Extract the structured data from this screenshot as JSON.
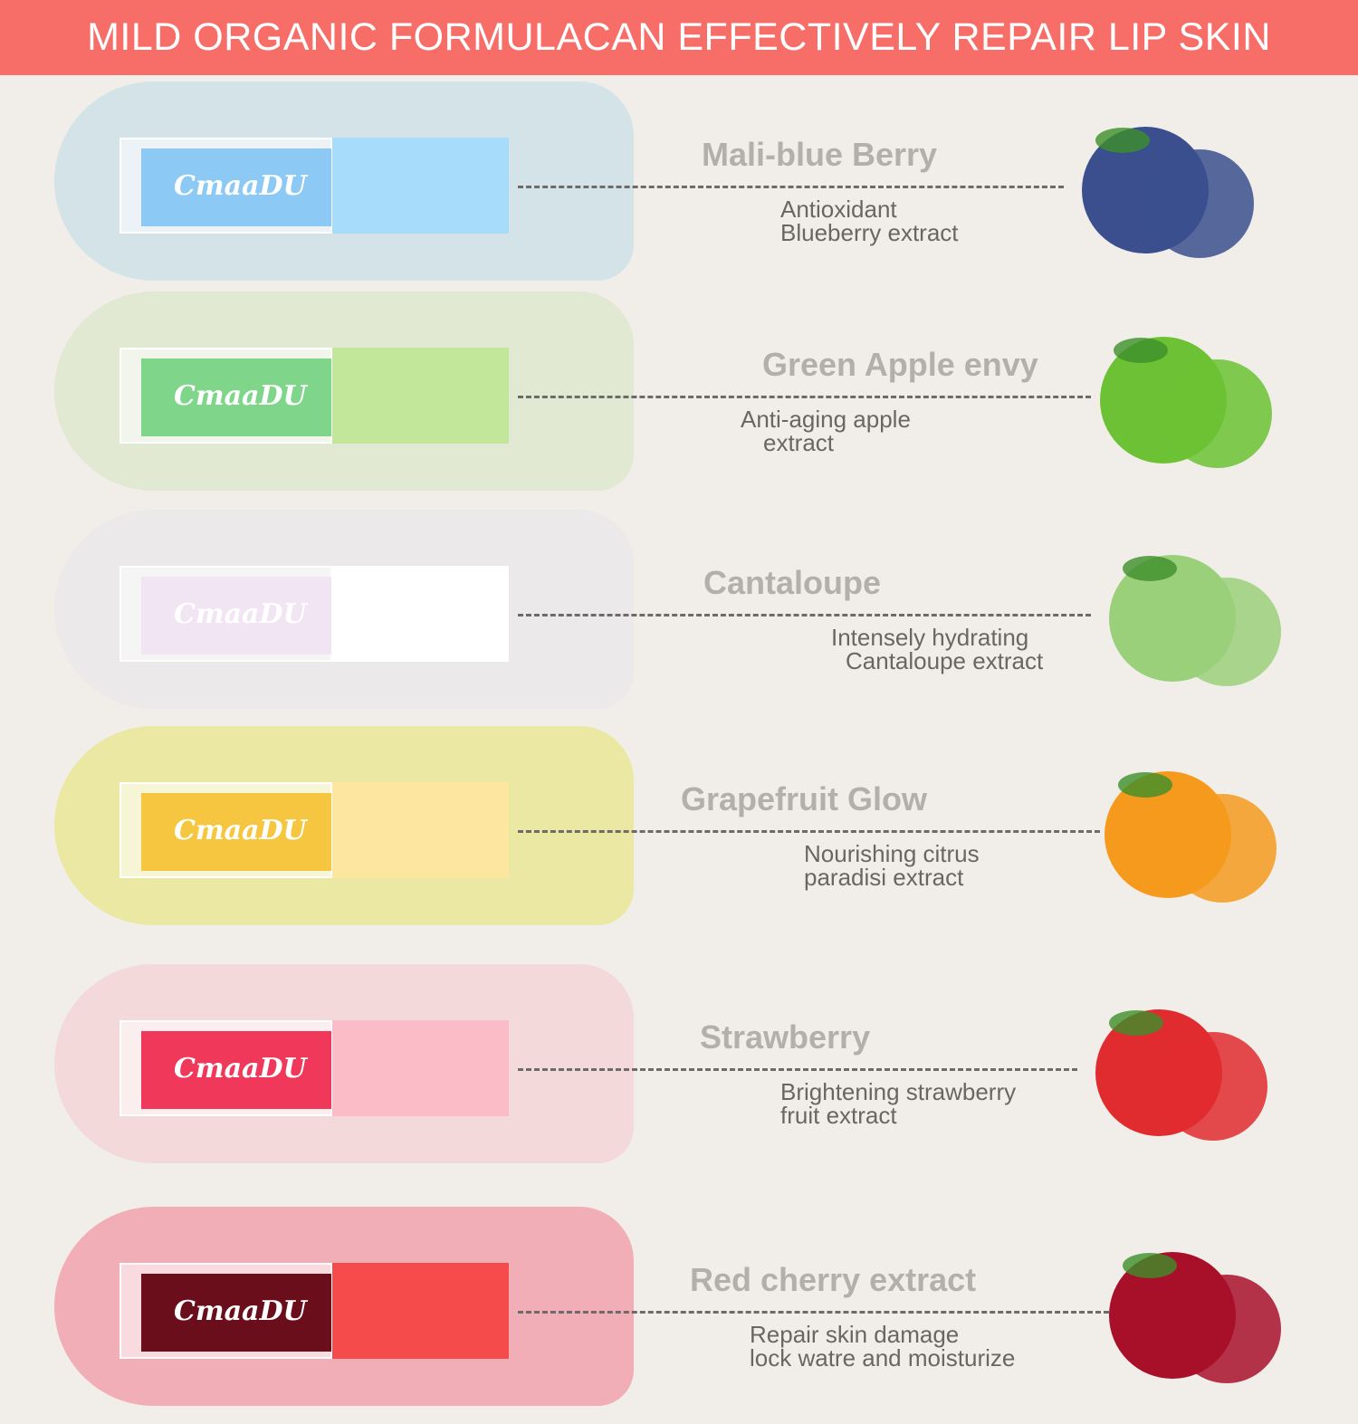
{
  "banner": {
    "title": "MILD ORGANIC FORMULACAN EFFECTIVELY REPAIR LIP SKIN",
    "color": "#f76e69"
  },
  "brand": "CmaaDU",
  "products": [
    {
      "name": "Mali-blue Berry",
      "desc": [
        "Antioxidant",
        "Blueberry extract"
      ],
      "fruit_icon": "blueberry-icon",
      "smear": "#bcdbe6",
      "liquid": "#8ccaf5",
      "cap": "#a8dcfb",
      "fruit_color": "#3b4f8e"
    },
    {
      "name": "Green Apple envy",
      "desc": [
        "Anti-aging apple",
        "extract"
      ],
      "fruit_icon": "green-apple-icon",
      "smear": "#d3e6bd",
      "liquid": "#7fd68a",
      "cap": "#c2e79a",
      "fruit_color": "#6cc234"
    },
    {
      "name": "Cantaloupe",
      "desc": [
        "Intensely hydrating",
        "Cantaloupe extract"
      ],
      "fruit_icon": "cantaloupe-icon",
      "smear": "#e6e6e8",
      "liquid": "#f1e4f3",
      "cap": "#ffffff",
      "fruit_color": "#9bd07a"
    },
    {
      "name": "Grapefruit Glow",
      "desc": [
        "Nourishing citrus",
        "paradisi extract"
      ],
      "fruit_icon": "orange-icon",
      "smear": "#e6e46a",
      "liquid": "#f7c641",
      "cap": "#fde7a0",
      "fruit_color": "#f59a1d"
    },
    {
      "name": "Strawberry",
      "desc": [
        "Brightening strawberry",
        "fruit extract"
      ],
      "fruit_icon": "strawberry-icon",
      "smear": "#f4c9cc",
      "liquid": "#f0395a",
      "cap": "#fbbcc8",
      "fruit_color": "#e02b2f"
    },
    {
      "name": "Red cherry extract",
      "desc": [
        "Repair skin damage",
        "lock watre and moisturize"
      ],
      "fruit_icon": "cherry-icon",
      "smear": "#f37a8a",
      "liquid": "#6a0e1c",
      "cap": "#f54b4b",
      "fruit_color": "#a8102a"
    }
  ]
}
